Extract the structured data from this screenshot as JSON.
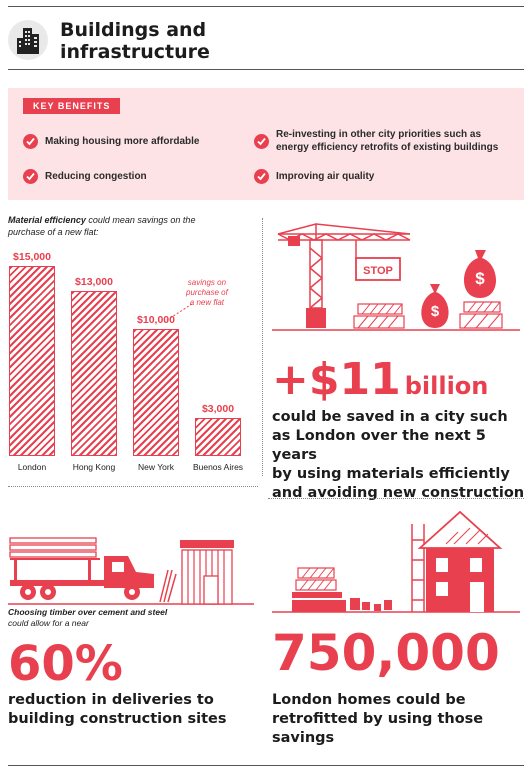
{
  "header": {
    "title_line1": "Buildings and",
    "title_line2": "infrastructure",
    "icon": "skyscraper-icon"
  },
  "benefits": {
    "badge": "KEY BENEFITS",
    "items": [
      {
        "text": "Making housing more affordable"
      },
      {
        "text_line1": "Re-investing in other city priorities such as",
        "text_line2": "energy efficiency retrofits of existing buildings"
      },
      {
        "text": "Reducing congestion"
      },
      {
        "text": "Improving air quality"
      }
    ],
    "icon": "checkmark-icon"
  },
  "chart": {
    "intro_bold": "Material efficiency",
    "intro_rest": " could mean savings on the",
    "intro_line2": "purchase of a new flat:",
    "annotation_line1": "savings on",
    "annotation_line2": "purchase of",
    "annotation_line3": "a new flat"
  },
  "chart_data": {
    "type": "bar",
    "categories": [
      "London",
      "Hong Kong",
      "New York",
      "Buenos Aires"
    ],
    "values": [
      15000,
      13000,
      10000,
      3000
    ],
    "value_labels": [
      "$15,000",
      "$13,000",
      "$10,000",
      "$3,000"
    ],
    "title": "",
    "xlabel": "",
    "ylabel": "",
    "ylim": [
      0,
      15000
    ],
    "grid": false,
    "color": "#e8404f"
  },
  "savings": {
    "stop_sign": "STOP",
    "amount": "+$11",
    "unit": "billion",
    "line1": "could be saved in a city such",
    "line2": "as London over the next 5 years",
    "line3": "by using materials efficiently",
    "line4": "and avoiding new construction",
    "money_symbol": "$"
  },
  "timber": {
    "caption_bold": "Choosing timber over cement and steel",
    "caption_line2": "could allow for a near",
    "percent": "60%",
    "line1": "reduction in deliveries to",
    "line2": "building construction sites"
  },
  "homes": {
    "number": "750,000",
    "line1": "London homes could be",
    "line2": "retrofitted by using those",
    "line3": "savings"
  },
  "colors": {
    "accent": "#e8404f",
    "panel": "#fde3e5",
    "text": "#1c1c1c"
  }
}
